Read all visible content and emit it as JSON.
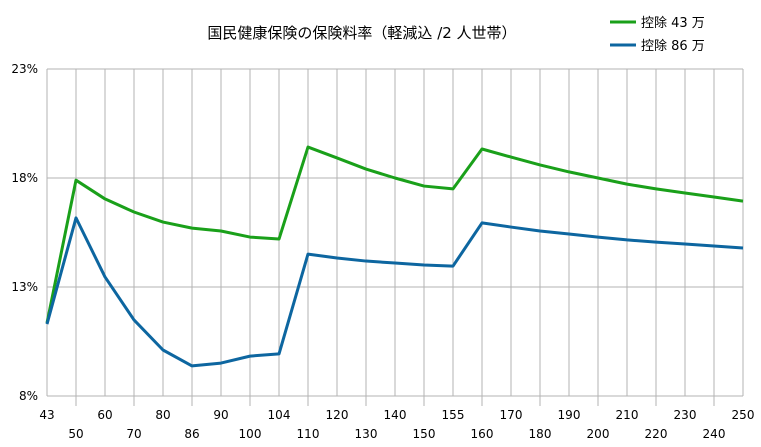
{
  "chart_data": {
    "type": "line",
    "title": "国民健康保険の保険料率（軽減込 /2 人世帯）",
    "xlabel": "",
    "ylabel": "",
    "categories": [
      "43",
      "50",
      "60",
      "70",
      "80",
      "86",
      "90",
      "100",
      "104",
      "110",
      "120",
      "130",
      "140",
      "150",
      "155",
      "160",
      "170",
      "180",
      "190",
      "200",
      "210",
      "220",
      "230",
      "240",
      "250"
    ],
    "ylim": [
      8,
      23
    ],
    "yticks": [
      "8%",
      "13%",
      "18%",
      "23%"
    ],
    "ytick_values": [
      8,
      13,
      18,
      23
    ],
    "grid": true,
    "legend_position": "top-right",
    "series": [
      {
        "name": "控除 43 万",
        "color": "#1aa01a",
        "values": [
          11.35,
          17.9,
          17.04,
          16.44,
          15.98,
          15.7,
          15.57,
          15.29,
          15.2,
          19.42,
          18.92,
          18.41,
          18.0,
          17.63,
          17.5,
          19.33,
          18.96,
          18.6,
          18.28,
          18.0,
          17.72,
          17.5,
          17.31,
          17.13,
          16.94
        ]
      },
      {
        "name": "控除 86 万",
        "color": "#0d66a0",
        "values": [
          11.3,
          16.17,
          13.46,
          11.49,
          10.11,
          9.38,
          9.51,
          9.83,
          9.93,
          14.51,
          14.33,
          14.19,
          14.1,
          14.01,
          13.96,
          15.94,
          15.75,
          15.57,
          15.43,
          15.29,
          15.16,
          15.06,
          14.97,
          14.88,
          14.79
        ]
      }
    ]
  }
}
